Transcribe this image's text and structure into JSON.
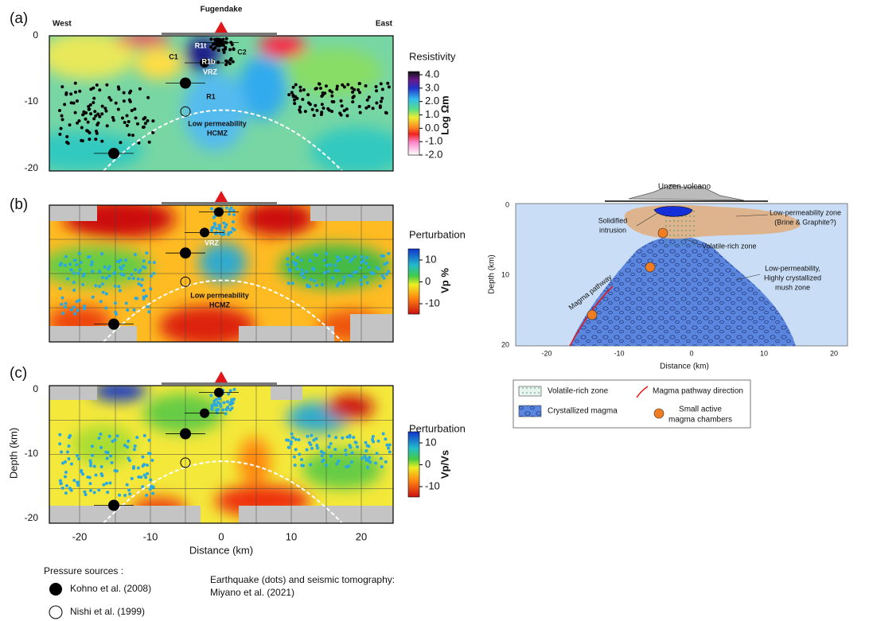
{
  "panels": [
    {
      "label": "(a)",
      "top_left": "West",
      "top_center": "Fugendake",
      "top_right": "East",
      "annotations": [
        "R1t",
        "R1b",
        "C1",
        "C2",
        "VRZ",
        "R1",
        "Low permeability",
        "HCMZ"
      ],
      "colorbar": {
        "title": "Resistivity",
        "unit": "Log Ωm",
        "ticks": [
          "4.0",
          "3.0",
          "2.0",
          "1.0",
          "0.0",
          "-1.0",
          "-2.0"
        ]
      },
      "depth_ticks": [
        "0",
        "-10",
        "-20"
      ]
    },
    {
      "label": "(b)",
      "annotations": [
        "VRZ",
        "Low permeability",
        "HCMZ"
      ],
      "colorbar": {
        "title": "Perturbation",
        "unit": "Vp %",
        "ticks": [
          "10",
          "0",
          "-10"
        ]
      }
    },
    {
      "label": "(c)",
      "colorbar": {
        "title": "Perturbation",
        "unit": "Vp/Vs",
        "ticks": [
          "10",
          "0",
          "-10"
        ]
      },
      "depth_ticks": [
        "0",
        "-10",
        "-20"
      ],
      "y_label": "Depth (km)",
      "distance_ticks": [
        "-20",
        "-10",
        "0",
        "10",
        "20"
      ],
      "x_label": "Distance (km)"
    }
  ],
  "schematic": {
    "title": "Unzen volcano",
    "labels": {
      "intrusion": [
        "Solidified",
        "intrusion"
      ],
      "low_perm_zone": [
        "Low-permeability zone",
        "(Brine & Graphite?)"
      ],
      "volatile": "Volatile-rich zone",
      "mush": [
        "Low-permeability,",
        "Highly crystallized",
        "mush zone"
      ],
      "pathway": "Magma pathway"
    },
    "depth_ticks": [
      "0",
      "10",
      "20"
    ],
    "distance_ticks": [
      "-20",
      "-10",
      "0",
      "10",
      "20"
    ],
    "y_label": "Depth (km)",
    "x_label": "Distance (km)"
  },
  "legend": {
    "volatile": "Volatile-rich zone",
    "crystallized": "Crystallized magma",
    "pathway": "Magma pathway direction",
    "chambers": [
      "Small active",
      "magma chambers"
    ]
  },
  "footnote": {
    "pressure_title": "Pressure sources :",
    "kohno": "Kohno et al. (2008)",
    "nishi": "Nishi et al. (1999)",
    "eq": [
      "Earthquake (dots) and seismic tomography:",
      "Miyano et al. (2021)"
    ]
  }
}
